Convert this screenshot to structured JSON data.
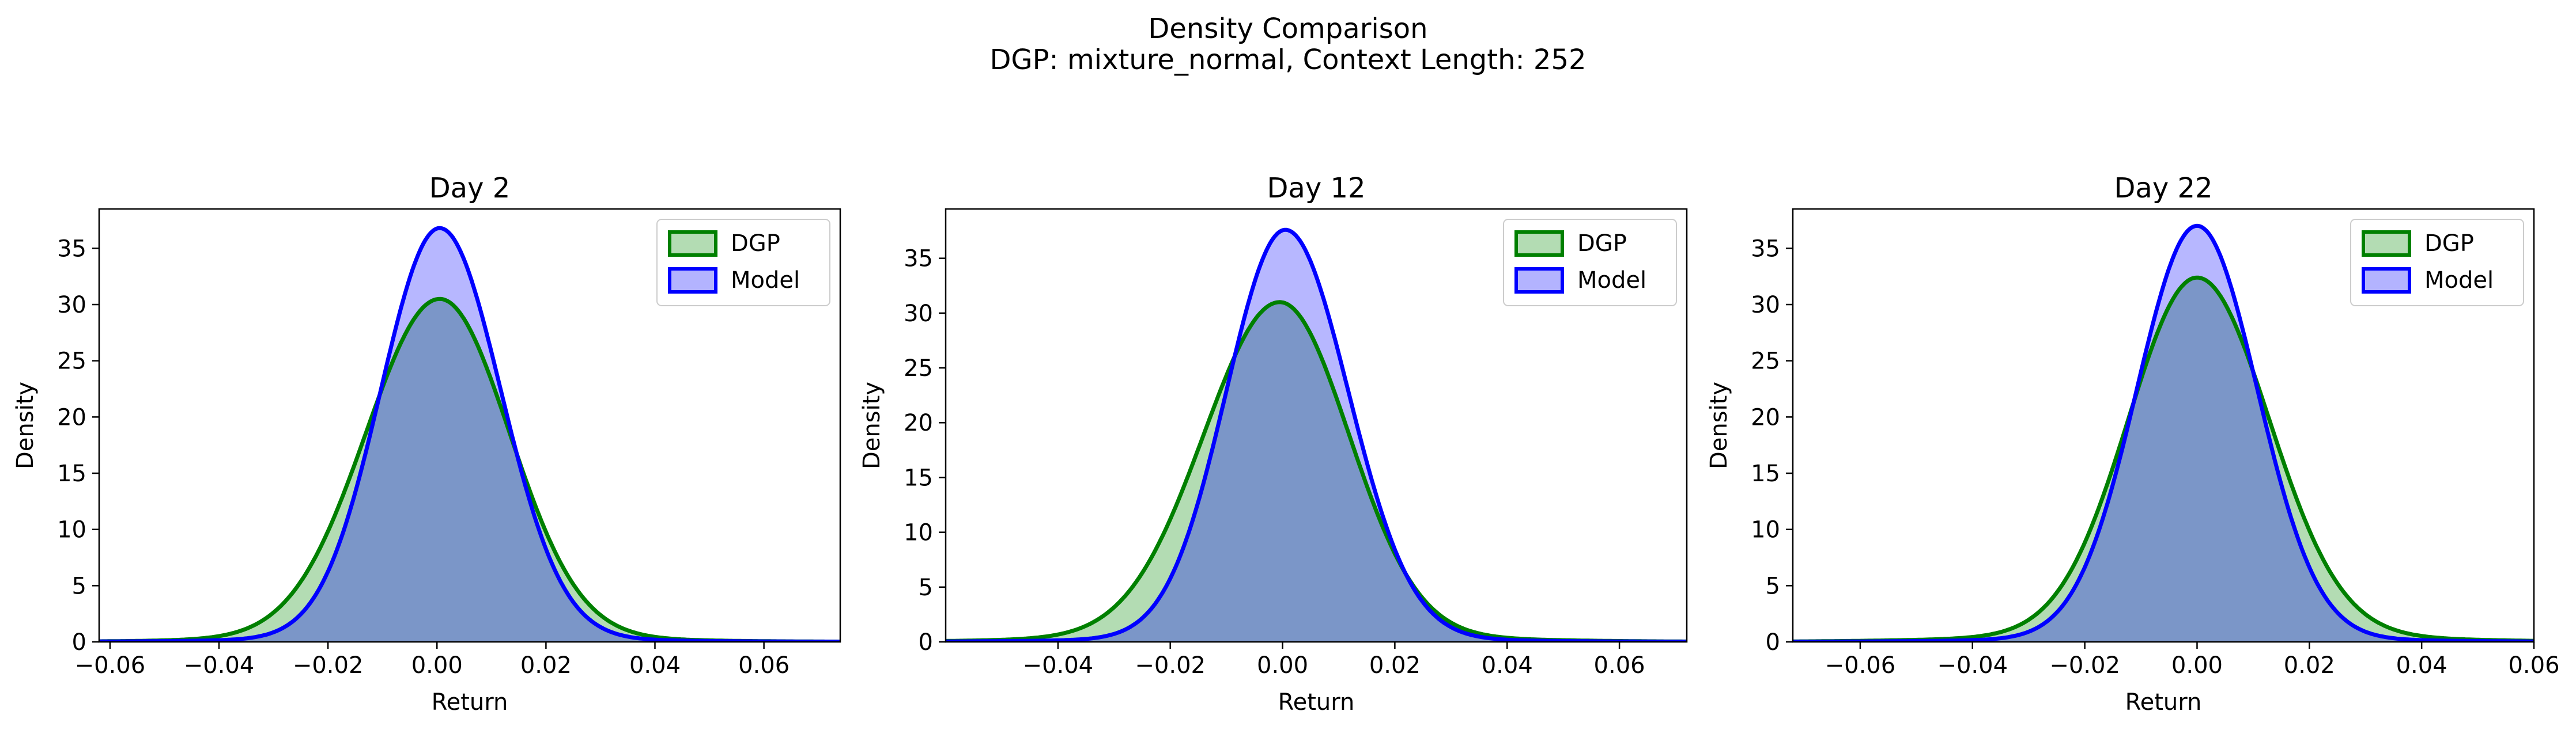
{
  "figure": {
    "title_line1": "Density Comparison",
    "title_line2": "DGP: mixture_normal, Context Length: 252"
  },
  "colors": {
    "dgp_line": "#008000",
    "dgp_fill": "#b3dcb3",
    "model_line": "#0000ff",
    "model_fill": "#b3b3ff",
    "overlap_fill": "#7b96c8"
  },
  "chart_data": [
    {
      "type": "area",
      "title": "Day 2",
      "xlabel": "Return",
      "ylabel": "Density",
      "xlim": [
        -0.062,
        0.074
      ],
      "ylim": [
        0,
        38.5
      ],
      "xticks": [
        -0.06,
        -0.04,
        -0.02,
        0.0,
        0.02,
        0.04,
        0.06
      ],
      "xtick_labels": [
        "−0.06",
        "−0.04",
        "−0.02",
        "0.00",
        "0.02",
        "0.04",
        "0.06"
      ],
      "yticks": [
        0,
        5,
        10,
        15,
        20,
        25,
        30,
        35
      ],
      "legend": "top-right",
      "grid": false,
      "series": [
        {
          "name": "DGP",
          "mode": 0.0005,
          "peak": 30.5,
          "sd_left": 0.0135,
          "sd_right": 0.0128,
          "tail": 0.45
        },
        {
          "name": "Model",
          "mode": 0.0005,
          "peak": 36.8,
          "sd_left": 0.0108,
          "sd_right": 0.0112,
          "tail": 0.3
        }
      ]
    },
    {
      "type": "area",
      "title": "Day 12",
      "xlabel": "Return",
      "ylabel": "Density",
      "xlim": [
        -0.06,
        0.072
      ],
      "ylim": [
        0,
        39.5
      ],
      "xticks": [
        -0.04,
        -0.02,
        0.0,
        0.02,
        0.04,
        0.06
      ],
      "xtick_labels": [
        "−0.04",
        "−0.02",
        "0.00",
        "0.02",
        "0.04",
        "0.06"
      ],
      "yticks": [
        0,
        5,
        10,
        15,
        20,
        25,
        30,
        35
      ],
      "legend": "top-right",
      "grid": false,
      "series": [
        {
          "name": "DGP",
          "mode": -0.0005,
          "peak": 31.0,
          "sd_left": 0.0135,
          "sd_right": 0.0123,
          "tail": 0.6
        },
        {
          "name": "Model",
          "mode": 0.0005,
          "peak": 37.6,
          "sd_left": 0.0105,
          "sd_right": 0.0112,
          "tail": 0.3
        }
      ]
    },
    {
      "type": "area",
      "title": "Day 22",
      "xlabel": "Return",
      "ylabel": "Density",
      "xlim": [
        -0.072,
        0.06
      ],
      "ylim": [
        0,
        38.5
      ],
      "xticks": [
        -0.06,
        -0.04,
        -0.02,
        0.0,
        0.02,
        0.04,
        0.06
      ],
      "xtick_labels": [
        "−0.06",
        "−0.04",
        "−0.02",
        "0.00",
        "0.02",
        "0.04",
        "0.06"
      ],
      "yticks": [
        0,
        5,
        10,
        15,
        20,
        25,
        30,
        35
      ],
      "legend": "top-right",
      "grid": false,
      "series": [
        {
          "name": "DGP",
          "mode": 0.0,
          "peak": 32.4,
          "sd_left": 0.0122,
          "sd_right": 0.0128,
          "tail": 0.7
        },
        {
          "name": "Model",
          "mode": 0.0,
          "peak": 37.0,
          "sd_left": 0.0107,
          "sd_right": 0.0107,
          "tail": 0.3
        }
      ]
    }
  ]
}
